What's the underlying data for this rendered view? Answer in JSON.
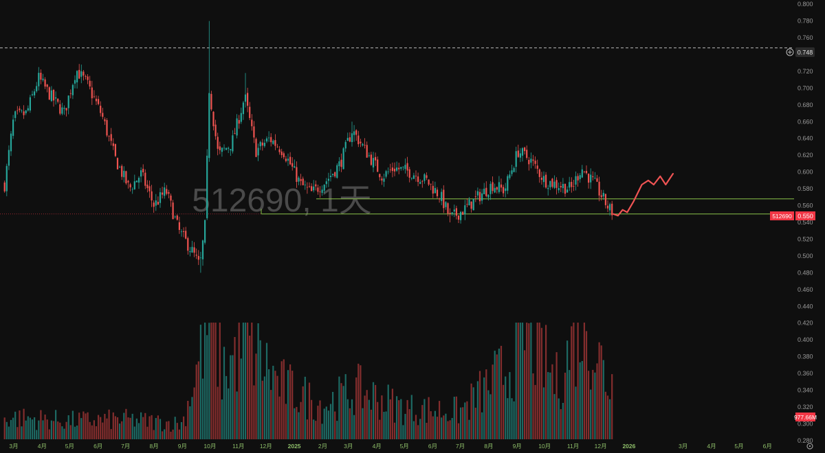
{
  "watermark": "512690, 1天",
  "price_axis": {
    "ticks": [
      "0.800",
      "0.780",
      "0.760",
      "0.740",
      "0.720",
      "0.700",
      "0.680",
      "0.660",
      "0.640",
      "0.620",
      "0.600",
      "0.580",
      "0.560",
      "0.540",
      "0.520",
      "0.500",
      "0.480",
      "0.460",
      "0.440",
      "0.420",
      "0.400",
      "0.380",
      "0.360",
      "0.340",
      "0.320",
      "0.300",
      "0.280"
    ]
  },
  "time_axis": {
    "ticks": [
      "3月",
      "4月",
      "5月",
      "6月",
      "7月",
      "8月",
      "9月",
      "10月",
      "11月",
      "12月",
      "2025",
      "2月",
      "3月",
      "4月",
      "5月",
      "6月",
      "7月",
      "8月",
      "9月",
      "10月",
      "11月",
      "12月",
      "2026",
      "3月",
      "4月",
      "5月",
      "6月"
    ]
  },
  "labels": {
    "alert_price": "0.748",
    "symbol": "512690",
    "last_price": "0.550",
    "volume": "977.66M"
  },
  "colors": {
    "background": "#0f0f0f",
    "up": "#26a69a",
    "down": "#ef5350",
    "projection": "#f05454",
    "support_lines": "#8bc34a",
    "axis_text": "#9a9a9a",
    "time_axis_text": "#8fbf6a"
  },
  "chart_data": {
    "type": "candlestick",
    "symbol": "512690",
    "interval": "1天",
    "close_path": [
      {
        "date": "2024-02-20",
        "close": 0.585
      },
      {
        "date": "2024-03-01",
        "close": 0.665
      },
      {
        "date": "2024-03-15",
        "close": 0.67
      },
      {
        "date": "2024-03-28",
        "close": 0.712
      },
      {
        "date": "2024-04-12",
        "close": 0.688
      },
      {
        "date": "2024-04-25",
        "close": 0.67
      },
      {
        "date": "2024-05-08",
        "close": 0.722
      },
      {
        "date": "2024-05-20",
        "close": 0.705
      },
      {
        "date": "2024-06-05",
        "close": 0.668
      },
      {
        "date": "2024-06-20",
        "close": 0.615
      },
      {
        "date": "2024-07-05",
        "close": 0.58
      },
      {
        "date": "2024-07-18",
        "close": 0.598
      },
      {
        "date": "2024-08-01",
        "close": 0.56
      },
      {
        "date": "2024-08-14",
        "close": 0.578
      },
      {
        "date": "2024-08-28",
        "close": 0.53
      },
      {
        "date": "2024-09-12",
        "close": 0.505
      },
      {
        "date": "2024-09-20",
        "close": 0.487
      },
      {
        "date": "2024-09-26",
        "close": 0.54
      },
      {
        "date": "2024-09-30",
        "close": 0.7
      },
      {
        "date": "2024-10-10",
        "close": 0.62
      },
      {
        "date": "2024-10-25",
        "close": 0.635
      },
      {
        "date": "2024-11-08",
        "close": 0.69
      },
      {
        "date": "2024-11-20",
        "close": 0.625
      },
      {
        "date": "2024-12-05",
        "close": 0.64
      },
      {
        "date": "2024-12-20",
        "close": 0.625
      },
      {
        "date": "2025-01-08",
        "close": 0.585
      },
      {
        "date": "2025-01-20",
        "close": 0.575
      },
      {
        "date": "2025-02-05",
        "close": 0.59
      },
      {
        "date": "2025-02-20",
        "close": 0.61
      },
      {
        "date": "2025-03-05",
        "close": 0.65
      },
      {
        "date": "2025-03-20",
        "close": 0.625
      },
      {
        "date": "2025-04-07",
        "close": 0.595
      },
      {
        "date": "2025-04-20",
        "close": 0.605
      },
      {
        "date": "2025-05-08",
        "close": 0.6
      },
      {
        "date": "2025-05-25",
        "close": 0.59
      },
      {
        "date": "2025-06-10",
        "close": 0.57
      },
      {
        "date": "2025-06-20",
        "close": 0.545
      },
      {
        "date": "2025-07-05",
        "close": 0.555
      },
      {
        "date": "2025-07-20",
        "close": 0.57
      },
      {
        "date": "2025-08-05",
        "close": 0.585
      },
      {
        "date": "2025-08-18",
        "close": 0.578
      },
      {
        "date": "2025-09-02",
        "close": 0.625
      },
      {
        "date": "2025-09-15",
        "close": 0.615
      },
      {
        "date": "2025-10-01",
        "close": 0.59
      },
      {
        "date": "2025-10-15",
        "close": 0.585
      },
      {
        "date": "2025-10-30",
        "close": 0.58
      },
      {
        "date": "2025-11-10",
        "close": 0.605
      },
      {
        "date": "2025-11-25",
        "close": 0.585
      },
      {
        "date": "2025-12-08",
        "close": 0.56
      },
      {
        "date": "2025-12-15",
        "close": 0.55
      }
    ],
    "projection": [
      {
        "date": "2025-12-15",
        "close": 0.55
      },
      {
        "date": "2025-12-20",
        "close": 0.548
      },
      {
        "date": "2025-12-25",
        "close": 0.555
      },
      {
        "date": "2025-12-30",
        "close": 0.552
      },
      {
        "date": "2026-01-06",
        "close": 0.565
      },
      {
        "date": "2026-01-15",
        "close": 0.585
      },
      {
        "date": "2026-01-22",
        "close": 0.59
      },
      {
        "date": "2026-01-28",
        "close": 0.585
      },
      {
        "date": "2026-02-04",
        "close": 0.595
      },
      {
        "date": "2026-02-10",
        "close": 0.585
      },
      {
        "date": "2026-02-18",
        "close": 0.598
      }
    ],
    "horizontal_lines": [
      {
        "value": 0.748,
        "style": "dashed"
      },
      {
        "value": 0.568,
        "style": "solid"
      },
      {
        "value": 0.55,
        "style": "solid"
      }
    ],
    "last_price": 0.55,
    "last_volume": "977.66M",
    "y_axis": {
      "min": 0.275,
      "max": 0.805,
      "scale": "linear"
    },
    "x_axis": {
      "start": "2024-02-15",
      "end": "2026-06-30"
    },
    "volume_profile": [
      {
        "date": "2024-03-01",
        "volume": 0.35
      },
      {
        "date": "2024-05-01",
        "volume": 0.3
      },
      {
        "date": "2024-07-01",
        "volume": 0.32
      },
      {
        "date": "2024-09-01",
        "volume": 0.25
      },
      {
        "date": "2024-09-30",
        "volume": 1.9
      },
      {
        "date": "2024-10-15",
        "volume": 1.1
      },
      {
        "date": "2024-11-10",
        "volume": 1.6
      },
      {
        "date": "2024-12-15",
        "volume": 0.9
      },
      {
        "date": "2025-02-01",
        "volume": 0.55
      },
      {
        "date": "2025-03-10",
        "volume": 0.8
      },
      {
        "date": "2025-05-01",
        "volume": 0.5
      },
      {
        "date": "2025-07-01",
        "volume": 0.45
      },
      {
        "date": "2025-08-25",
        "volume": 1.2
      },
      {
        "date": "2025-09-10",
        "volume": 1.8
      },
      {
        "date": "2025-10-15",
        "volume": 0.9
      },
      {
        "date": "2025-11-12",
        "volume": 2.0
      },
      {
        "date": "2025-12-10",
        "volume": 0.9
      }
    ],
    "grid": false,
    "legend": "none"
  }
}
